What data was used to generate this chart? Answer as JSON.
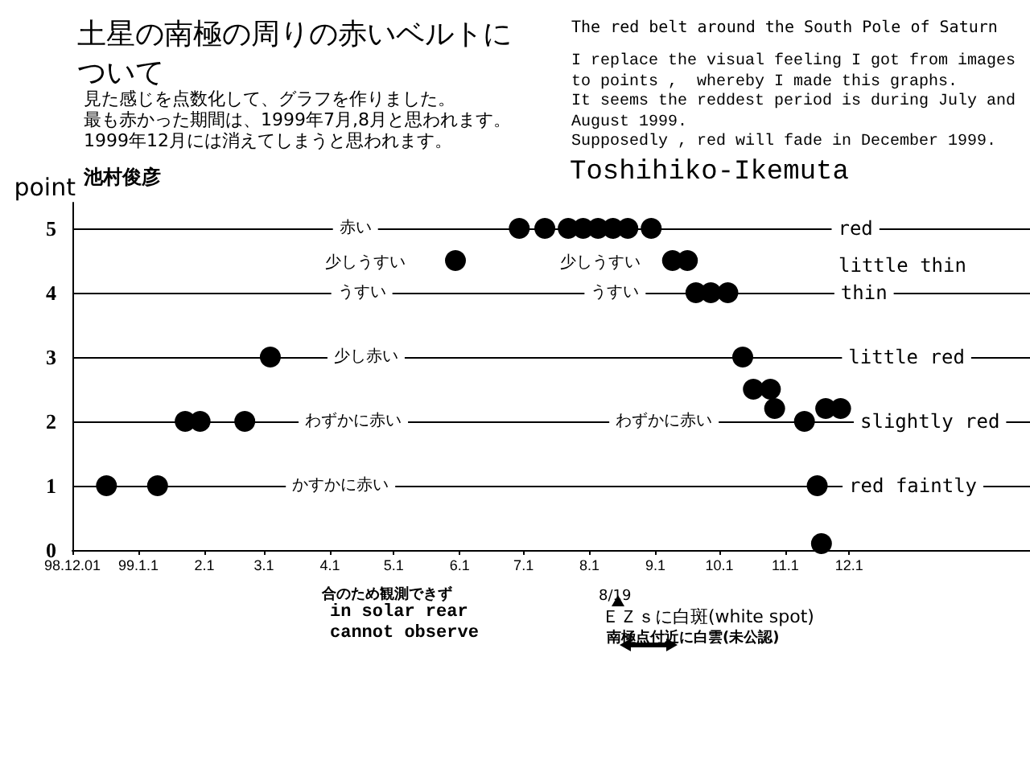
{
  "chart_data": {
    "type": "scatter",
    "title": "土星の南極の周りの赤いベルトについて",
    "subtitle": "見た感じを点数化して、グラフを作りました。",
    "ylabel": "point",
    "x": [
      "1998-12-17",
      "1999-01-10",
      "1999-01-23",
      "1999-01-30",
      "1999-02-20",
      "1999-03-04",
      "1999-05-30",
      "1999-06-29",
      "1999-07-11",
      "1999-07-22",
      "1999-07-29",
      "1999-08-05",
      "1999-08-12",
      "1999-08-19",
      "1999-08-30",
      "1999-09-09",
      "1999-09-16",
      "1999-09-20",
      "1999-09-27",
      "1999-10-05",
      "1999-10-12",
      "1999-10-17",
      "1999-10-25",
      "1999-10-27",
      "1999-11-10",
      "1999-11-16",
      "1999-11-18",
      "1999-11-20",
      "1999-11-27"
    ],
    "series": [
      {
        "color": "#000000",
        "values": [
          1,
          1,
          2,
          2,
          2,
          3,
          4.5,
          5,
          5,
          5,
          5,
          5,
          5,
          5,
          5,
          4.5,
          4.5,
          4,
          4,
          4,
          3,
          2.5,
          2.5,
          2.2,
          2,
          1,
          0.1,
          2.2,
          2.2
        ]
      }
    ],
    "marker": "circle",
    "xlim": [
      "1998-12-01",
      "2000-02-24"
    ],
    "xticks": [
      {
        "value": "1998-12-01",
        "label": "98.12.01"
      },
      {
        "value": "1999-01-01",
        "label": "99.1.1"
      },
      {
        "value": "1999-02-01",
        "label": "2.1"
      },
      {
        "value": "1999-03-01",
        "label": "3.1"
      },
      {
        "value": "1999-04-01",
        "label": "4.1"
      },
      {
        "value": "1999-05-01",
        "label": "5.1"
      },
      {
        "value": "1999-06-01",
        "label": "6.1"
      },
      {
        "value": "1999-07-01",
        "label": "7.1"
      },
      {
        "value": "1999-08-01",
        "label": "8.1"
      },
      {
        "value": "1999-09-01",
        "label": "9.1"
      },
      {
        "value": "1999-10-01",
        "label": "10.1"
      },
      {
        "value": "1999-11-01",
        "label": "11.1"
      },
      {
        "value": "1999-12-01",
        "label": "12.1"
      }
    ],
    "ylim": [
      0,
      5.4
    ],
    "yticks": [
      0,
      1,
      2,
      3,
      4,
      5
    ],
    "grid": false,
    "ref_lines": [
      {
        "axis": "y",
        "value": 1,
        "color": "#000000"
      },
      {
        "axis": "y",
        "value": 2,
        "color": "#000000"
      },
      {
        "axis": "y",
        "value": 3,
        "color": "#000000"
      },
      {
        "axis": "y",
        "value": 4,
        "color": "#000000"
      },
      {
        "axis": "y",
        "value": 5,
        "color": "#000000"
      }
    ],
    "annotations": [
      "The red belt around the South Pole of Saturn",
      "I replace the visual feeling I got from images\nto points ,  whereby I made this graphs.\nIt seems the reddest period is during July and\nAugust 1999.\nSupposedly , red will fade in December 1999.",
      "池村俊彦",
      "Toshihiko-Ikemuta",
      "合のため観測できず",
      "in solar rear",
      "cannot observe",
      "8/19",
      "ＥＺｓに白斑(white spot)",
      "南極点付近に白雲(未公認)",
      "最も赤かった期間は、1999年7月,8月と思われます。",
      "1999年12月には消えてしまうと思われます。",
      "少しうすい",
      "少しうすい",
      "little thin",
      {
        "text": "赤い",
        "x": "1999-04-13",
        "y": 5
      },
      {
        "text": "red",
        "x": "1999-12-04",
        "y": 5
      },
      {
        "text": "うすい",
        "x": "1999-04-16",
        "y": 4
      },
      {
        "text": "うすい",
        "x": "1999-08-13",
        "y": 4
      },
      {
        "text": "thin",
        "x": "1999-12-08",
        "y": 4
      },
      {
        "text": "少し赤い",
        "x": "1999-04-18",
        "y": 3
      },
      {
        "text": "little red",
        "x": "1999-12-28",
        "y": 3
      },
      {
        "text": "わずかに赤い",
        "x": "1999-04-12",
        "y": 2
      },
      {
        "text": "わずかに赤い",
        "x": "1999-09-05",
        "y": 2
      },
      {
        "text": "slightly red",
        "x": "2000-01-08",
        "y": 2
      },
      {
        "text": "かすかに赤い",
        "x": "1999-04-06",
        "y": 1
      },
      {
        "text": "red faintly",
        "x": "1999-12-31",
        "y": 1
      }
    ]
  }
}
